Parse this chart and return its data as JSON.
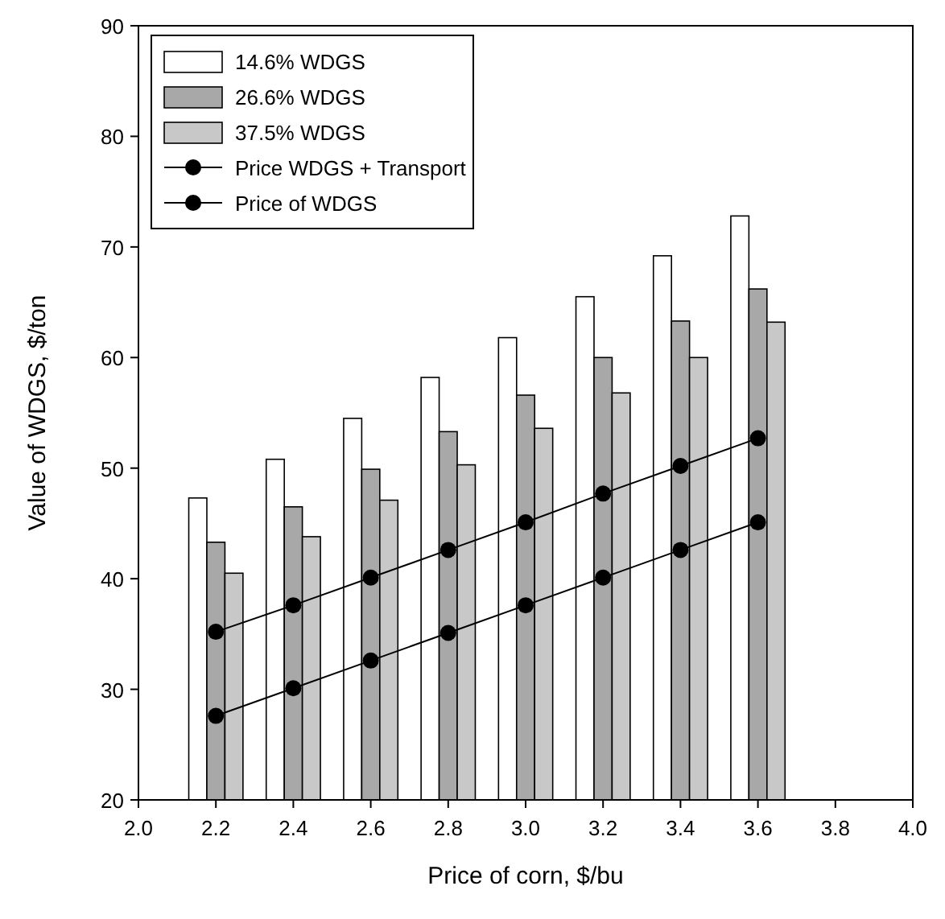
{
  "chart_data": {
    "type": "bar",
    "xlabel": "Price of corn, $/bu",
    "ylabel": "Value of WDGS, $/ton",
    "x": [
      2.2,
      2.4,
      2.6,
      2.8,
      3.0,
      3.2,
      3.4,
      3.6
    ],
    "series": [
      {
        "name": "14.6% WDGS",
        "color": "#ffffff",
        "values": [
          47.3,
          50.8,
          54.5,
          58.2,
          61.8,
          65.5,
          69.2,
          72.8
        ]
      },
      {
        "name": "26.6% WDGS",
        "color": "#a8a8a8",
        "values": [
          43.3,
          46.5,
          49.9,
          53.3,
          56.6,
          60.0,
          63.3,
          66.2
        ]
      },
      {
        "name": "37.5% WDGS",
        "color": "#c8c8c8",
        "values": [
          40.5,
          43.8,
          47.1,
          50.3,
          53.6,
          56.8,
          60.0,
          63.2
        ]
      },
      {
        "name": "Price WDGS + Transport",
        "type": "line",
        "color": "#000000",
        "marker": "circle",
        "values": [
          35.2,
          37.6,
          40.1,
          42.6,
          45.1,
          47.7,
          50.2,
          52.7
        ]
      },
      {
        "name": "Price of WDGS",
        "type": "line",
        "color": "#000000",
        "marker": "circle",
        "values": [
          27.6,
          30.1,
          32.6,
          35.1,
          37.6,
          40.1,
          42.6,
          45.1
        ]
      }
    ],
    "xlim": [
      2.0,
      4.0
    ],
    "xticks": [
      {
        "value": 2.0,
        "label": "2.0"
      },
      2.2,
      2.4,
      2.6,
      2.8,
      {
        "value": 3.0,
        "label": "3.0"
      },
      3.2,
      3.4,
      3.6,
      3.8,
      {
        "value": 4.0,
        "label": "4.0"
      }
    ],
    "ylim": [
      20,
      90
    ],
    "yticks": [
      20,
      30,
      40,
      50,
      60,
      70,
      80,
      90
    ],
    "legend": "top left",
    "grid": false
  }
}
